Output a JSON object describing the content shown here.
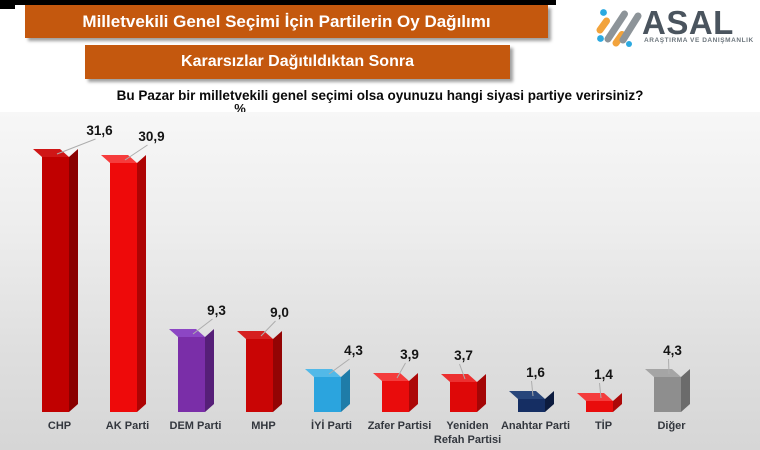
{
  "header": {
    "title": "Milletvekili Genel Seçimi İçin Partilerin Oy Dağılımı",
    "subtitle": "Kararsızlar Dağıtıldıktan Sonra",
    "banner_color": "#c4580e"
  },
  "brand": {
    "name": "ASAL",
    "tagline": "ARAŞTIRMA VE DANIŞMANLIK",
    "text_color": "#4a545e",
    "icon_orange": "#f2a33c",
    "icon_gray": "#8d9499",
    "icon_blue": "#2ca9e0"
  },
  "question": "Bu Pazar bir milletvekili genel seçimi olsa oyunuzu hangi siyasi partiye verirsiniz?",
  "unit_label": "%",
  "chart_data": {
    "type": "bar",
    "orientation": "vertical",
    "style": "3d",
    "title": "Milletvekili Genel Seçimi İçin Partilerin Oy Dağılımı",
    "subtitle": "Kararsızlar Dağıtıldıktan Sonra",
    "ylabel": "%",
    "ylim": [
      0,
      35
    ],
    "grid": false,
    "legend": false,
    "categories": [
      "CHP",
      "AK Parti",
      "DEM Parti",
      "MHP",
      "İYİ Parti",
      "Zafer Partisi",
      "Yeniden\nRefah Partisi",
      "Anahtar Parti",
      "TİP",
      "Diğer"
    ],
    "values": [
      31.6,
      30.9,
      9.3,
      9.0,
      4.3,
      3.9,
      3.7,
      1.6,
      1.4,
      4.3
    ],
    "value_labels": [
      "31,6",
      "30,9",
      "9,3",
      "9,0",
      "4,3",
      "3,9",
      "3,7",
      "1,6",
      "1,4",
      "4,3"
    ],
    "bar_colors": [
      {
        "front": "#c00000",
        "side": "#8a0000",
        "top": "#cf1616"
      },
      {
        "front": "#ee0a0a",
        "side": "#ae0404",
        "top": "#f63c3c"
      },
      {
        "front": "#7a2ea8",
        "side": "#561f78",
        "top": "#8c46c4"
      },
      {
        "front": "#c90505",
        "side": "#930404",
        "top": "#d62020"
      },
      {
        "front": "#2ba4de",
        "side": "#1f7ca8",
        "top": "#52b9e8"
      },
      {
        "front": "#e90c0c",
        "side": "#ac0808",
        "top": "#f43c3c"
      },
      {
        "front": "#de0808",
        "side": "#a40606",
        "top": "#ec3030"
      },
      {
        "front": "#152e63",
        "side": "#0c1b3e",
        "top": "#27457a"
      },
      {
        "front": "#e90c0c",
        "side": "#ac0808",
        "top": "#f43c3c"
      },
      {
        "front": "#8e8e8e",
        "side": "#6b6b6b",
        "top": "#a5a5a5"
      }
    ],
    "leader_line_color": "#adadad"
  }
}
